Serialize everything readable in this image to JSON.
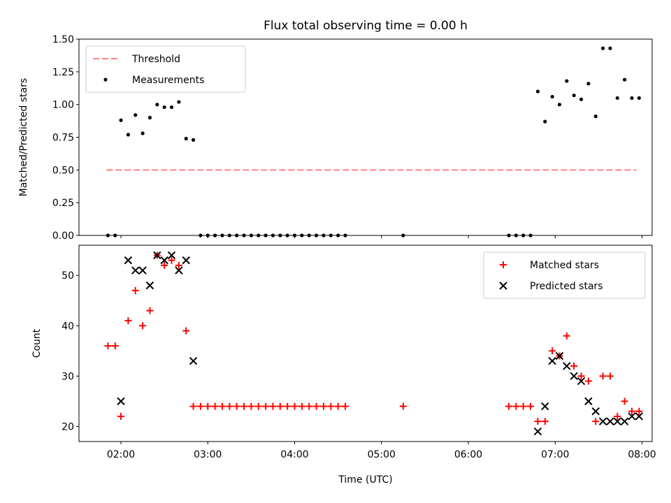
{
  "title": "Flux total observing time = 0.00 h",
  "colors": {
    "matched": "#ff0000",
    "predicted": "#000000",
    "measurement": "#000000",
    "threshold": "#ff8080",
    "axes": "#000000"
  },
  "chart_data": [
    {
      "type": "scatter",
      "ylabel": "Matched/Predicted stars",
      "xlim": [
        "01:31",
        "08:07"
      ],
      "ylim": [
        0,
        1.5
      ],
      "yticks": [
        0.0,
        0.25,
        0.5,
        0.75,
        1.0,
        1.25,
        1.5
      ],
      "ytick_labels": [
        "0.00",
        "0.25",
        "0.50",
        "0.75",
        "1.00",
        "1.25",
        "1.50"
      ],
      "legend_position": "upper-left",
      "series": [
        {
          "name": "Threshold",
          "style": "dashed-line",
          "x": [
            "01:50",
            "07:56"
          ],
          "y": [
            0.5,
            0.5
          ]
        },
        {
          "name": "Measurements",
          "style": "dot",
          "x": [
            "01:51",
            "01:56",
            "02:00",
            "02:05",
            "02:10",
            "02:15",
            "02:20",
            "02:25",
            "02:30",
            "02:35",
            "02:40",
            "02:45",
            "02:50",
            "02:55",
            "03:00",
            "03:05",
            "03:10",
            "03:15",
            "03:20",
            "03:25",
            "03:30",
            "03:35",
            "03:40",
            "03:45",
            "03:50",
            "03:55",
            "04:00",
            "04:05",
            "04:10",
            "04:15",
            "04:20",
            "04:25",
            "04:30",
            "04:35",
            "05:15",
            "06:28",
            "06:33",
            "06:38",
            "06:43",
            "06:48",
            "06:53",
            "06:58",
            "07:03",
            "07:08",
            "07:13",
            "07:18",
            "07:23",
            "07:28",
            "07:33",
            "07:38",
            "07:43",
            "07:48",
            "07:53",
            "07:58"
          ],
          "y": [
            0,
            0,
            0.88,
            0.77,
            0.92,
            0.78,
            0.9,
            1.0,
            0.98,
            0.98,
            1.02,
            0.74,
            0.73,
            0,
            0,
            0,
            0,
            0,
            0,
            0,
            0,
            0,
            0,
            0,
            0,
            0,
            0,
            0,
            0,
            0,
            0,
            0,
            0,
            0,
            0,
            0,
            0,
            0,
            0,
            1.1,
            0.87,
            1.06,
            1.0,
            1.18,
            1.07,
            1.04,
            1.16,
            0.91,
            1.43,
            1.43,
            1.05,
            1.19,
            1.05,
            1.05
          ]
        }
      ]
    },
    {
      "type": "scatter",
      "xlabel": "Time (UTC)",
      "ylabel": "Count",
      "xlim": [
        "01:31",
        "08:07"
      ],
      "ylim": [
        17,
        56
      ],
      "yticks": [
        20,
        30,
        40,
        50
      ],
      "ytick_labels": [
        "20",
        "30",
        "40",
        "50"
      ],
      "xticks": [
        "02:00",
        "03:00",
        "04:00",
        "05:00",
        "06:00",
        "07:00",
        "08:00"
      ],
      "legend_position": "upper-right",
      "series": [
        {
          "name": "Matched stars",
          "marker": "+",
          "x": [
            "01:51",
            "01:56",
            "02:00",
            "02:05",
            "02:10",
            "02:15",
            "02:20",
            "02:25",
            "02:30",
            "02:35",
            "02:40",
            "02:45",
            "02:50",
            "02:55",
            "03:00",
            "03:05",
            "03:10",
            "03:15",
            "03:20",
            "03:25",
            "03:30",
            "03:35",
            "03:40",
            "03:45",
            "03:50",
            "03:55",
            "04:00",
            "04:05",
            "04:10",
            "04:15",
            "04:20",
            "04:25",
            "04:30",
            "04:35",
            "05:15",
            "06:28",
            "06:33",
            "06:38",
            "06:43",
            "06:48",
            "06:53",
            "06:58",
            "07:03",
            "07:08",
            "07:13",
            "07:18",
            "07:23",
            "07:28",
            "07:33",
            "07:38",
            "07:43",
            "07:48",
            "07:53",
            "07:58"
          ],
          "y": [
            36,
            36,
            22,
            41,
            47,
            40,
            43,
            54,
            52,
            53,
            52,
            39,
            24,
            24,
            24,
            24,
            24,
            24,
            24,
            24,
            24,
            24,
            24,
            24,
            24,
            24,
            24,
            24,
            24,
            24,
            24,
            24,
            24,
            24,
            24,
            24,
            24,
            24,
            24,
            21,
            21,
            35,
            34,
            38,
            32,
            30,
            29,
            21,
            30,
            30,
            22,
            25,
            23,
            23
          ]
        },
        {
          "name": "Predicted stars",
          "marker": "x",
          "x": [
            "02:00",
            "02:05",
            "02:10",
            "02:15",
            "02:20",
            "02:25",
            "02:30",
            "02:35",
            "02:40",
            "02:45",
            "02:50",
            "06:48",
            "06:53",
            "06:58",
            "07:03",
            "07:08",
            "07:13",
            "07:18",
            "07:23",
            "07:28",
            "07:33",
            "07:38",
            "07:43",
            "07:48",
            "07:53",
            "07:58"
          ],
          "y": [
            25,
            53,
            51,
            51,
            48,
            54,
            53,
            54,
            51,
            53,
            33,
            19,
            24,
            33,
            34,
            32,
            30,
            29,
            25,
            23,
            21,
            21,
            21,
            21,
            22,
            22
          ]
        }
      ]
    }
  ]
}
